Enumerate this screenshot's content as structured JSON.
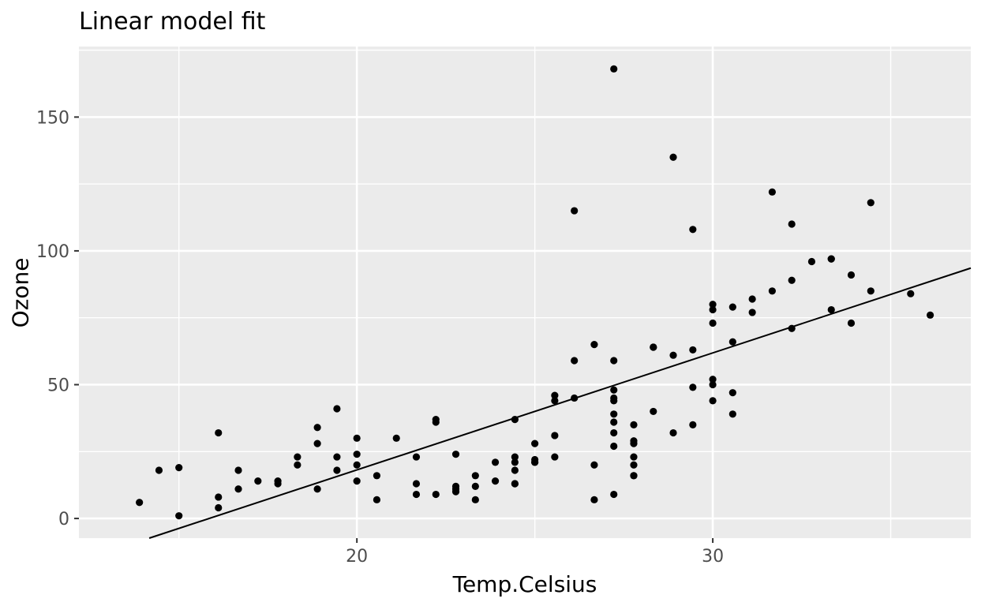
{
  "chart_data": {
    "type": "scatter",
    "title": "Linear model fit",
    "xlabel": "Temp.Celsius",
    "ylabel": "Ozone",
    "xlim": [
      12.19,
      37.25
    ],
    "ylim": [
      -7.35,
      176.35
    ],
    "x_major_ticks": [
      20,
      30
    ],
    "x_minor_ticks": [
      15,
      25,
      35
    ],
    "y_major_ticks": [
      0,
      50,
      100,
      150
    ],
    "y_minor_ticks": [
      25,
      75,
      125,
      175
    ],
    "grid": true,
    "legend": "none",
    "fit_line": {
      "slope": 4.3717,
      "intercept": -69.28
    },
    "points": [
      [
        19.44,
        41
      ],
      [
        22.22,
        36
      ],
      [
        23.33,
        12
      ],
      [
        16.67,
        18
      ],
      [
        18.89,
        28
      ],
      [
        18.33,
        23
      ],
      [
        15.0,
        19
      ],
      [
        16.11,
        8
      ],
      [
        23.33,
        7
      ],
      [
        20.56,
        16
      ],
      [
        18.89,
        11
      ],
      [
        20.0,
        14
      ],
      [
        14.44,
        18
      ],
      [
        17.78,
        14
      ],
      [
        18.89,
        34
      ],
      [
        13.89,
        6
      ],
      [
        20.0,
        30
      ],
      [
        16.67,
        11
      ],
      [
        15.0,
        1
      ],
      [
        22.78,
        11
      ],
      [
        16.11,
        4
      ],
      [
        16.11,
        32
      ],
      [
        19.44,
        23
      ],
      [
        27.22,
        45
      ],
      [
        26.11,
        115
      ],
      [
        24.44,
        37
      ],
      [
        27.78,
        29
      ],
      [
        32.22,
        71
      ],
      [
        30.56,
        39
      ],
      [
        27.78,
        23
      ],
      [
        25.0,
        21
      ],
      [
        22.22,
        37
      ],
      [
        18.33,
        20
      ],
      [
        22.78,
        12
      ],
      [
        24.44,
        13
      ],
      [
        28.89,
        135
      ],
      [
        29.44,
        49
      ],
      [
        27.22,
        32
      ],
      [
        28.33,
        64
      ],
      [
        28.33,
        40
      ],
      [
        31.11,
        77
      ],
      [
        33.33,
        97
      ],
      [
        33.33,
        97
      ],
      [
        31.67,
        85
      ],
      [
        22.78,
        10
      ],
      [
        27.22,
        27
      ],
      [
        26.67,
        7
      ],
      [
        27.22,
        48
      ],
      [
        27.78,
        35
      ],
      [
        28.89,
        61
      ],
      [
        30.56,
        79
      ],
      [
        29.44,
        63
      ],
      [
        23.33,
        16
      ],
      [
        30.0,
        80
      ],
      [
        29.44,
        108
      ],
      [
        27.78,
        20
      ],
      [
        30.0,
        52
      ],
      [
        31.11,
        82
      ],
      [
        30.0,
        50
      ],
      [
        28.33,
        64
      ],
      [
        27.22,
        59
      ],
      [
        27.22,
        39
      ],
      [
        27.22,
        9
      ],
      [
        27.78,
        16
      ],
      [
        30.0,
        78
      ],
      [
        29.44,
        35
      ],
      [
        30.56,
        66
      ],
      [
        31.67,
        122
      ],
      [
        32.22,
        89
      ],
      [
        32.22,
        110
      ],
      [
        30.0,
        44
      ],
      [
        27.78,
        28
      ],
      [
        26.67,
        65
      ],
      [
        25.0,
        22
      ],
      [
        26.11,
        59
      ],
      [
        24.44,
        23
      ],
      [
        25.56,
        31
      ],
      [
        25.56,
        44
      ],
      [
        25.0,
        21
      ],
      [
        22.22,
        9
      ],
      [
        26.11,
        45
      ],
      [
        27.22,
        168
      ],
      [
        30.0,
        73
      ],
      [
        36.11,
        76
      ],
      [
        34.44,
        118
      ],
      [
        35.56,
        84
      ],
      [
        34.44,
        85
      ],
      [
        32.78,
        96
      ],
      [
        33.33,
        78
      ],
      [
        33.89,
        73
      ],
      [
        33.89,
        91
      ],
      [
        30.56,
        47
      ],
      [
        28.89,
        32
      ],
      [
        26.67,
        20
      ],
      [
        25.56,
        23
      ],
      [
        23.89,
        21
      ],
      [
        22.78,
        24
      ],
      [
        27.22,
        44
      ],
      [
        24.44,
        21
      ],
      [
        25.0,
        28
      ],
      [
        21.67,
        9
      ],
      [
        21.67,
        13
      ],
      [
        25.56,
        46
      ],
      [
        19.44,
        18
      ],
      [
        24.44,
        13
      ],
      [
        20.0,
        24
      ],
      [
        27.78,
        16
      ],
      [
        17.78,
        13
      ],
      [
        21.67,
        23
      ],
      [
        27.22,
        36
      ],
      [
        20.56,
        7
      ],
      [
        17.22,
        14
      ],
      [
        21.11,
        30
      ],
      [
        23.89,
        14
      ],
      [
        24.44,
        18
      ],
      [
        20.0,
        20
      ]
    ]
  },
  "style": {
    "page_bg": "#FFFFFF",
    "panel_bg": "#EBEBEB",
    "grid_color": "#FFFFFF",
    "point_color": "#000000",
    "fit_line_color": "#000000",
    "tick_mark_color": "#333333",
    "tick_label_color": "#4D4D4D",
    "title_color": "#000000",
    "axis_title_color": "#000000"
  }
}
